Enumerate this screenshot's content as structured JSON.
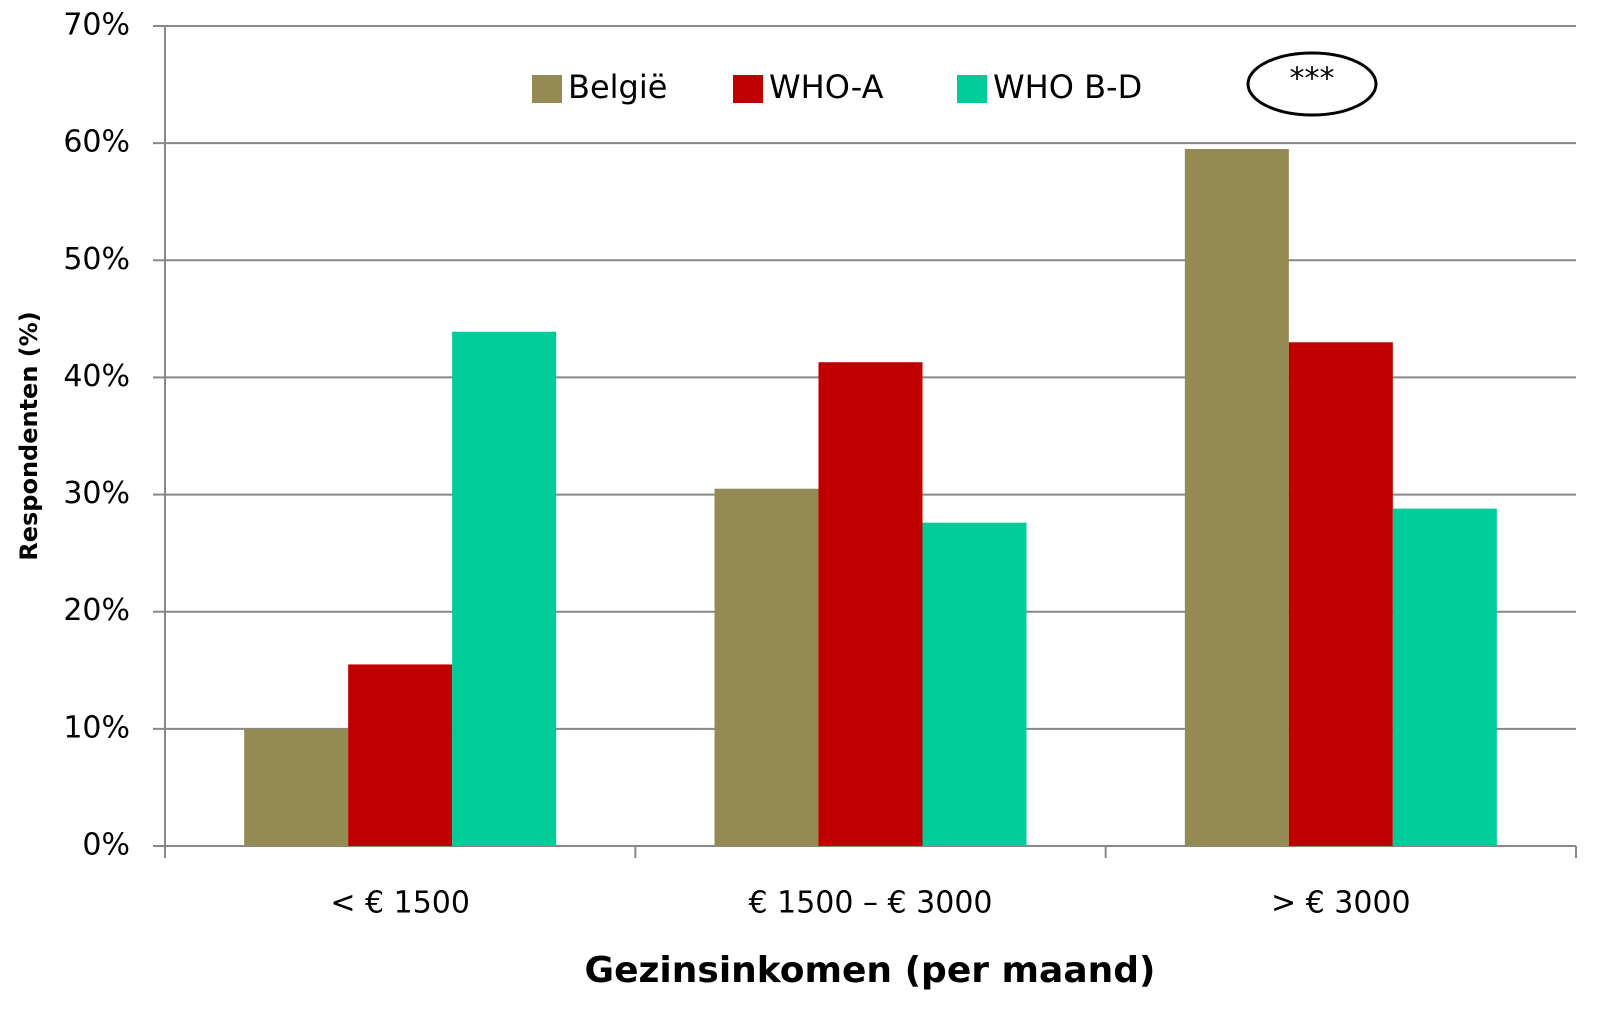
{
  "chart_data": {
    "type": "bar",
    "categories": [
      "< € 1500",
      "€ 1500 – € 3000",
      "> € 3000"
    ],
    "series": [
      {
        "name": "België",
        "color": "#948a54",
        "values": [
          10,
          30.5,
          59.5
        ]
      },
      {
        "name": "WHO-A",
        "color": "#c00000",
        "values": [
          15.5,
          41.3,
          43
        ]
      },
      {
        "name": "WHO B-D",
        "color": "#00cc99",
        "values": [
          43.9,
          27.6,
          28.8
        ]
      }
    ],
    "ylim": [
      0,
      70
    ],
    "yticks": [
      {
        "value": 0,
        "label": "0%"
      },
      {
        "value": 10,
        "label": "10%"
      },
      {
        "value": 20,
        "label": "20%"
      },
      {
        "value": 30,
        "label": "30%"
      },
      {
        "value": 40,
        "label": "40%"
      },
      {
        "value": 50,
        "label": "50%"
      },
      {
        "value": 60,
        "label": "60%"
      },
      {
        "value": 70,
        "label": "70%"
      }
    ],
    "xlabel": "Gezinsinkomen (per maand)",
    "ylabel": "Respondenten (%)",
    "annotation": "***",
    "grid": true,
    "legend": "top"
  }
}
